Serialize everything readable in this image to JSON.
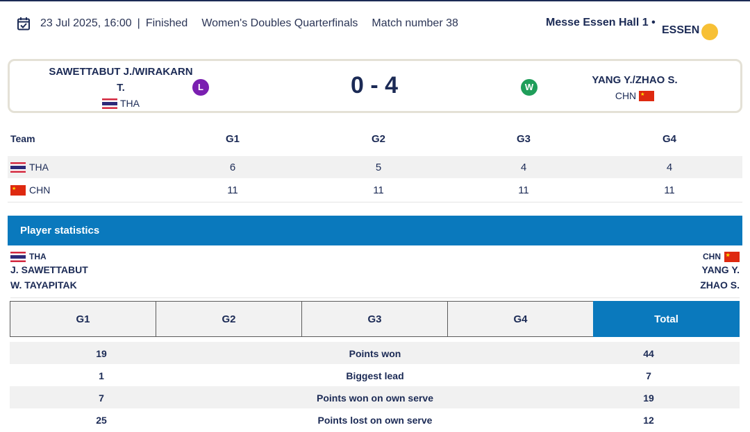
{
  "header": {
    "date": "23 Jul 2025, 16:00",
    "separator": "|",
    "status": "Finished",
    "event": "Women's Doubles Quarterfinals",
    "match_number": "Match number 38",
    "venue": "Messe Essen Hall 1 •",
    "city": "ESSEN",
    "calendar_icon": "calendar-check-icon",
    "weather_icon": "sun-icon"
  },
  "match": {
    "team_a": {
      "name_line1": "SAWETTABUT J./WIRAKARN",
      "name_line2": "T.",
      "nation": "THA",
      "result": "L"
    },
    "team_b": {
      "name": "YANG Y./ZHAO S.",
      "nation": "CHN",
      "result": "W"
    },
    "score": "0 - 4"
  },
  "games_table": {
    "headers": [
      "Team",
      "G1",
      "G2",
      "G3",
      "G4"
    ],
    "rows": [
      {
        "team": "THA",
        "scores": [
          "6",
          "5",
          "4",
          "4"
        ]
      },
      {
        "team": "CHN",
        "scores": [
          "11",
          "11",
          "11",
          "11"
        ]
      }
    ]
  },
  "player_stats": {
    "title": "Player statistics",
    "left": {
      "nation": "THA",
      "players": [
        "J. SAWETTABUT",
        "W. TAYAPITAK"
      ]
    },
    "right": {
      "nation": "CHN",
      "players": [
        "YANG Y.",
        "ZHAO S."
      ]
    },
    "tabs": [
      "G1",
      "G2",
      "G3",
      "G4",
      "Total"
    ],
    "active_tab": "Total",
    "rows": [
      {
        "left": "19",
        "label": "Points won",
        "right": "44"
      },
      {
        "left": "1",
        "label": "Biggest lead",
        "right": "7"
      },
      {
        "left": "7",
        "label": "Points won on own serve",
        "right": "19"
      },
      {
        "left": "25",
        "label": "Points lost on own serve",
        "right": "12"
      }
    ]
  },
  "colors": {
    "navy": "#1b2a55",
    "accent_blue": "#0a79bd",
    "loss": "#7a1fb0",
    "win": "#1f9e5a",
    "sun": "#f7c035"
  }
}
